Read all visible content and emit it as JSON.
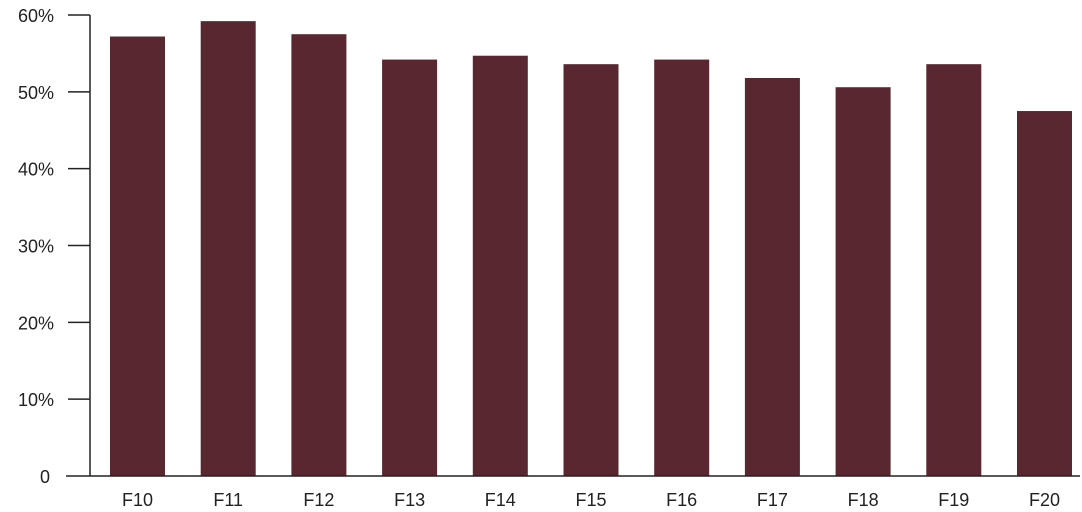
{
  "chart_data": {
    "type": "bar",
    "categories": [
      "F10",
      "F11",
      "F12",
      "F13",
      "F14",
      "F15",
      "F16",
      "F17",
      "F18",
      "F19",
      "F20"
    ],
    "values": [
      57.2,
      59.2,
      57.5,
      54.2,
      54.7,
      53.6,
      54.2,
      51.8,
      50.6,
      53.6,
      47.5
    ],
    "title": "",
    "xlabel": "",
    "ylabel": "",
    "ylim": [
      0,
      60
    ],
    "yticks": [
      0,
      10,
      20,
      30,
      40,
      50,
      60
    ],
    "ytick_labels": [
      "0",
      "10%",
      "20%",
      "30%",
      "40%",
      "50%",
      "60%"
    ],
    "grid": false,
    "legend": "none",
    "bar_color": "#58272f",
    "axis_color": "#222222"
  }
}
